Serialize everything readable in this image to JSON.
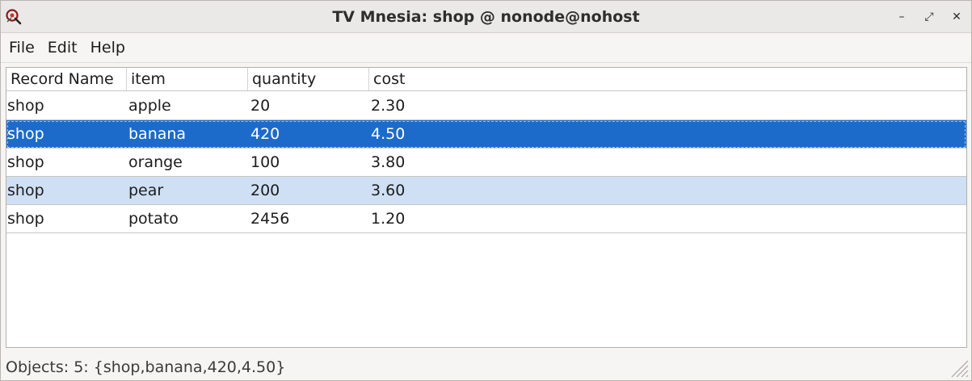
{
  "window": {
    "title": "TV Mnesia: shop @ nonode@nohost",
    "controls": {
      "minimize": "–",
      "maximize": "⤢",
      "close": "✕"
    }
  },
  "menu": {
    "items": [
      "File",
      "Edit",
      "Help"
    ]
  },
  "table": {
    "columns": [
      "Record Name",
      "item",
      "quantity",
      "cost"
    ],
    "rows": [
      {
        "record": "shop",
        "item": "apple",
        "quantity": "20",
        "cost": "2.30",
        "state": "normal"
      },
      {
        "record": "shop",
        "item": "banana",
        "quantity": "420",
        "cost": "4.50",
        "state": "selected"
      },
      {
        "record": "shop",
        "item": "orange",
        "quantity": "100",
        "cost": "3.80",
        "state": "normal"
      },
      {
        "record": "shop",
        "item": "pear",
        "quantity": "200",
        "cost": "3.60",
        "state": "highlight"
      },
      {
        "record": "shop",
        "item": "potato",
        "quantity": "2456",
        "cost": "1.20",
        "state": "normal"
      }
    ]
  },
  "status": {
    "text": "Objects: 5: {shop,banana,420,4.50}"
  },
  "colors": {
    "selection": "#1c6bcb",
    "row_highlight": "#cfe0f5",
    "titlebar": "#eae9e7"
  },
  "icons": {
    "app": "mnesia-app-icon",
    "resize": "resize-grip-icon"
  }
}
